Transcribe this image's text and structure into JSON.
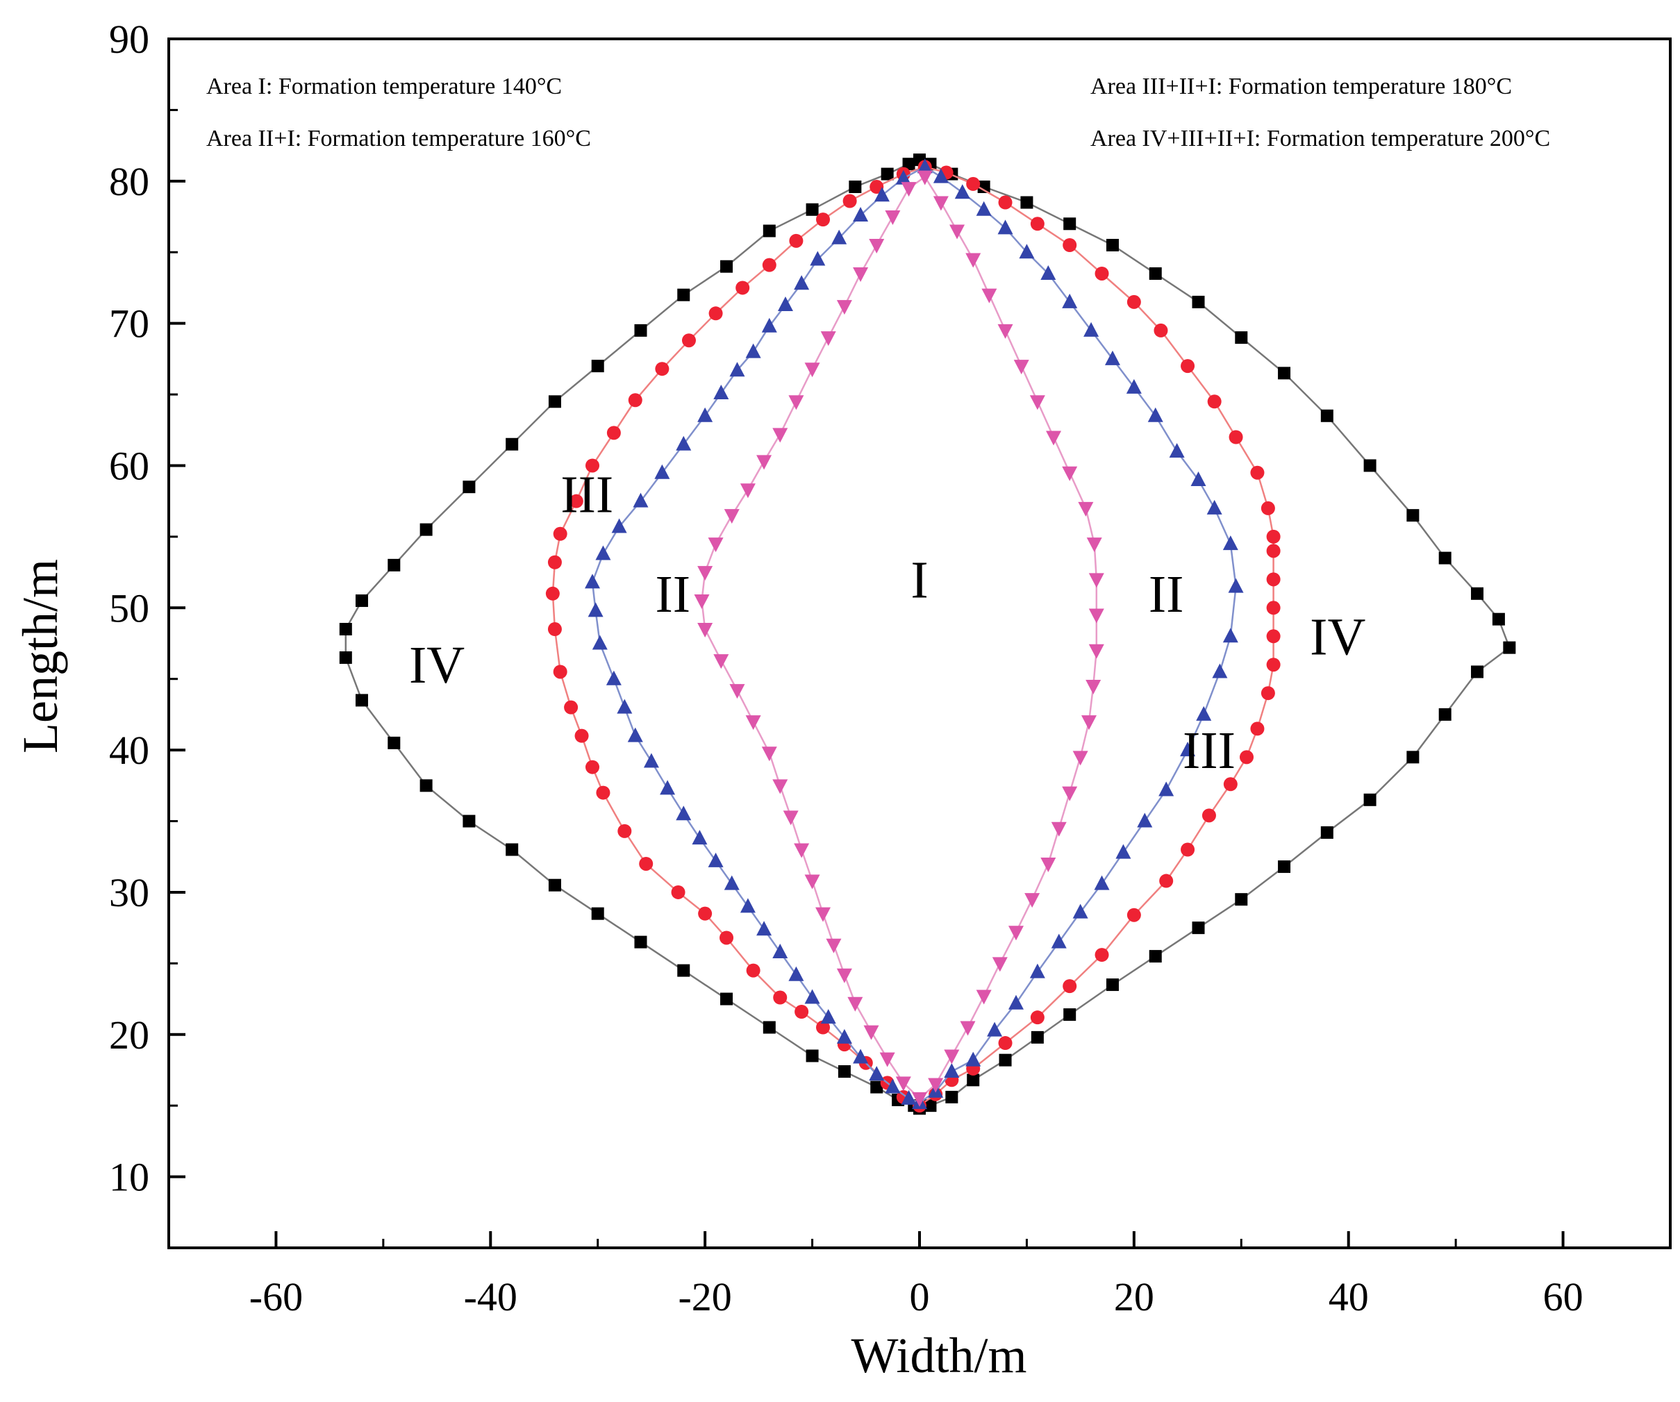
{
  "chart_data": {
    "type": "scatter",
    "title": "",
    "xlabel": "Width/m",
    "ylabel": "Length/m",
    "xlim": [
      -70,
      70
    ],
    "ylim": [
      5,
      90
    ],
    "xticks": [
      -60,
      -40,
      -20,
      0,
      20,
      40,
      60
    ],
    "yticks": [
      10,
      20,
      30,
      40,
      50,
      60,
      70,
      80,
      90
    ],
    "xtick_labels": [
      "-60",
      "-40",
      "-20",
      "0",
      "20",
      "40",
      "60"
    ],
    "ytick_labels": [
      "10",
      "20",
      "30",
      "40",
      "50",
      "60",
      "70",
      "80",
      "90"
    ],
    "legend_notes": [
      "Area I: Formation temperature 140°C",
      "Area II+I: Formation temperature 160°C",
      "Area III+II+I: Formation temperature 180°C",
      "Area IV+III+II+I: Formation temperature 200°C"
    ],
    "region_labels": [
      {
        "text": "I",
        "x": 0,
        "y": 52
      },
      {
        "text": "II",
        "x": -23,
        "y": 51
      },
      {
        "text": "II",
        "x": 23,
        "y": 51
      },
      {
        "text": "III",
        "x": -31,
        "y": 58
      },
      {
        "text": "III",
        "x": 27,
        "y": 40
      },
      {
        "text": "IV",
        "x": -45,
        "y": 46
      },
      {
        "text": "IV",
        "x": 39,
        "y": 48
      }
    ],
    "series": [
      {
        "name": "200°C",
        "marker": "square",
        "color": "#000000",
        "line_color": "#777777",
        "points": [
          [
            0,
            14.8
          ],
          [
            1,
            15
          ],
          [
            3,
            15.6
          ],
          [
            5,
            16.8
          ],
          [
            8,
            18.2
          ],
          [
            11,
            19.8
          ],
          [
            14,
            21.4
          ],
          [
            18,
            23.5
          ],
          [
            22,
            25.5
          ],
          [
            26,
            27.5
          ],
          [
            30,
            29.5
          ],
          [
            34,
            31.8
          ],
          [
            38,
            34.2
          ],
          [
            42,
            36.5
          ],
          [
            46,
            39.5
          ],
          [
            49,
            42.5
          ],
          [
            52,
            45.5
          ],
          [
            55,
            47.2
          ],
          [
            54,
            49.2
          ],
          [
            52,
            51
          ],
          [
            49,
            53.5
          ],
          [
            46,
            56.5
          ],
          [
            42,
            60
          ],
          [
            38,
            63.5
          ],
          [
            34,
            66.5
          ],
          [
            30,
            69
          ],
          [
            26,
            71.5
          ],
          [
            22,
            73.5
          ],
          [
            18,
            75.5
          ],
          [
            14,
            77
          ],
          [
            10,
            78.5
          ],
          [
            6,
            79.6
          ],
          [
            3,
            80.5
          ],
          [
            1,
            81.2
          ],
          [
            0,
            81.5
          ],
          [
            -1,
            81.2
          ],
          [
            -3,
            80.5
          ],
          [
            -6,
            79.6
          ],
          [
            -10,
            78
          ],
          [
            -14,
            76.5
          ],
          [
            -18,
            74
          ],
          [
            -22,
            72
          ],
          [
            -26,
            69.5
          ],
          [
            -30,
            67
          ],
          [
            -34,
            64.5
          ],
          [
            -38,
            61.5
          ],
          [
            -42,
            58.5
          ],
          [
            -46,
            55.5
          ],
          [
            -49,
            53
          ],
          [
            -52,
            50.5
          ],
          [
            -53.5,
            48.5
          ],
          [
            -53.5,
            46.5
          ],
          [
            -52,
            43.5
          ],
          [
            -49,
            40.5
          ],
          [
            -46,
            37.5
          ],
          [
            -42,
            35
          ],
          [
            -38,
            33
          ],
          [
            -34,
            30.5
          ],
          [
            -30,
            28.5
          ],
          [
            -26,
            26.5
          ],
          [
            -22,
            24.5
          ],
          [
            -18,
            22.5
          ],
          [
            -14,
            20.5
          ],
          [
            -10,
            18.5
          ],
          [
            -7,
            17.4
          ],
          [
            -4,
            16.3
          ],
          [
            -2,
            15.4
          ],
          [
            -0.5,
            15
          ]
        ]
      },
      {
        "name": "180°C",
        "marker": "circle",
        "color": "#ee2233",
        "line_color": "#f08080",
        "points": [
          [
            0,
            15
          ],
          [
            1.5,
            15.8
          ],
          [
            3,
            16.8
          ],
          [
            5,
            17.6
          ],
          [
            8,
            19.4
          ],
          [
            11,
            21.2
          ],
          [
            14,
            23.4
          ],
          [
            17,
            25.6
          ],
          [
            20,
            28.4
          ],
          [
            23,
            30.8
          ],
          [
            25,
            33
          ],
          [
            27,
            35.4
          ],
          [
            29,
            37.6
          ],
          [
            30.5,
            39.5
          ],
          [
            31.5,
            41.5
          ],
          [
            32.5,
            44
          ],
          [
            33,
            46
          ],
          [
            33,
            48
          ],
          [
            33,
            50
          ],
          [
            33,
            52
          ],
          [
            33,
            54
          ],
          [
            33,
            55
          ],
          [
            32.5,
            57
          ],
          [
            31.5,
            59.5
          ],
          [
            29.5,
            62
          ],
          [
            27.5,
            64.5
          ],
          [
            25,
            67
          ],
          [
            22.5,
            69.5
          ],
          [
            20,
            71.5
          ],
          [
            17,
            73.5
          ],
          [
            14,
            75.5
          ],
          [
            11,
            77
          ],
          [
            8,
            78.5
          ],
          [
            5,
            79.8
          ],
          [
            2.5,
            80.6
          ],
          [
            0.5,
            81
          ],
          [
            -1.5,
            80.5
          ],
          [
            -4,
            79.6
          ],
          [
            -6.5,
            78.6
          ],
          [
            -9,
            77.3
          ],
          [
            -11.5,
            75.8
          ],
          [
            -14,
            74.1
          ],
          [
            -16.5,
            72.5
          ],
          [
            -19,
            70.7
          ],
          [
            -21.5,
            68.8
          ],
          [
            -24,
            66.8
          ],
          [
            -26.5,
            64.6
          ],
          [
            -28.5,
            62.3
          ],
          [
            -30.5,
            60
          ],
          [
            -32,
            57.5
          ],
          [
            -33.5,
            55.2
          ],
          [
            -34,
            53.2
          ],
          [
            -34.2,
            51
          ],
          [
            -34,
            48.5
          ],
          [
            -33.5,
            45.5
          ],
          [
            -32.5,
            43
          ],
          [
            -31.5,
            41
          ],
          [
            -30.5,
            38.8
          ],
          [
            -29.5,
            37
          ],
          [
            -27.5,
            34.3
          ],
          [
            -25.5,
            32
          ],
          [
            -22.5,
            30
          ],
          [
            -20,
            28.5
          ],
          [
            -18,
            26.8
          ],
          [
            -15.5,
            24.5
          ],
          [
            -13,
            22.6
          ],
          [
            -11,
            21.6
          ],
          [
            -9,
            20.5
          ],
          [
            -7,
            19.3
          ],
          [
            -5,
            18
          ],
          [
            -3,
            16.6
          ],
          [
            -1.5,
            15.6
          ]
        ]
      },
      {
        "name": "160°C",
        "marker": "triangle-up",
        "color": "#3344aa",
        "line_color": "#8090cc",
        "points": [
          [
            0,
            15.2
          ],
          [
            1.5,
            16
          ],
          [
            3,
            17.4
          ],
          [
            5,
            18.2
          ],
          [
            7,
            20.3
          ],
          [
            9,
            22.2
          ],
          [
            11,
            24.4
          ],
          [
            13,
            26.5
          ],
          [
            15,
            28.6
          ],
          [
            17,
            30.6
          ],
          [
            19,
            32.8
          ],
          [
            21,
            35
          ],
          [
            23,
            37.2
          ],
          [
            25,
            40
          ],
          [
            26.5,
            42.5
          ],
          [
            28,
            45.5
          ],
          [
            29,
            48
          ],
          [
            29.5,
            51.5
          ],
          [
            29,
            54.5
          ],
          [
            27.5,
            57
          ],
          [
            26,
            59
          ],
          [
            24,
            61
          ],
          [
            22,
            63.5
          ],
          [
            20,
            65.5
          ],
          [
            18,
            67.5
          ],
          [
            16,
            69.5
          ],
          [
            14,
            71.5
          ],
          [
            12,
            73.5
          ],
          [
            10,
            75
          ],
          [
            8,
            76.7
          ],
          [
            6,
            78
          ],
          [
            4,
            79.2
          ],
          [
            2,
            80.3
          ],
          [
            0.5,
            81
          ],
          [
            -1.5,
            80.2
          ],
          [
            -3.5,
            79
          ],
          [
            -5.5,
            77.6
          ],
          [
            -7.5,
            76
          ],
          [
            -9.5,
            74.5
          ],
          [
            -11,
            72.8
          ],
          [
            -12.5,
            71.3
          ],
          [
            -14,
            69.8
          ],
          [
            -15.5,
            68
          ],
          [
            -17,
            66.7
          ],
          [
            -18.5,
            65.1
          ],
          [
            -20,
            63.5
          ],
          [
            -22,
            61.5
          ],
          [
            -24,
            59.5
          ],
          [
            -26,
            57.5
          ],
          [
            -28,
            55.7
          ],
          [
            -29.5,
            53.8
          ],
          [
            -30.5,
            51.8
          ],
          [
            -30.2,
            49.8
          ],
          [
            -29.8,
            47.5
          ],
          [
            -28.5,
            45
          ],
          [
            -27.5,
            43
          ],
          [
            -26.5,
            41
          ],
          [
            -25,
            39.2
          ],
          [
            -23.5,
            37.3
          ],
          [
            -22,
            35.5
          ],
          [
            -20.5,
            33.8
          ],
          [
            -19,
            32.2
          ],
          [
            -17.5,
            30.6
          ],
          [
            -16,
            29
          ],
          [
            -14.5,
            27.4
          ],
          [
            -13,
            25.8
          ],
          [
            -11.5,
            24.2
          ],
          [
            -10,
            22.6
          ],
          [
            -8.5,
            21.2
          ],
          [
            -7,
            19.8
          ],
          [
            -5.5,
            18.4
          ],
          [
            -4,
            17.2
          ],
          [
            -2.5,
            16.3
          ],
          [
            -1,
            15.5
          ]
        ]
      },
      {
        "name": "140°C",
        "marker": "triangle-down",
        "color": "#dd55aa",
        "line_color": "#e89cc8",
        "points": [
          [
            0,
            15.5
          ],
          [
            1.5,
            16.5
          ],
          [
            3,
            18.5
          ],
          [
            4.5,
            20.5
          ],
          [
            6,
            22.7
          ],
          [
            7.5,
            25
          ],
          [
            9,
            27.2
          ],
          [
            10.5,
            29.5
          ],
          [
            12,
            32
          ],
          [
            13,
            34.5
          ],
          [
            14,
            37
          ],
          [
            15,
            39.5
          ],
          [
            15.8,
            42
          ],
          [
            16.2,
            44.5
          ],
          [
            16.5,
            47
          ],
          [
            16.5,
            49.5
          ],
          [
            16.5,
            52
          ],
          [
            16.3,
            54.5
          ],
          [
            15.5,
            57
          ],
          [
            14,
            59.5
          ],
          [
            12.5,
            62
          ],
          [
            11,
            64.5
          ],
          [
            9.5,
            67
          ],
          [
            8,
            69.5
          ],
          [
            6.5,
            72
          ],
          [
            5,
            74.5
          ],
          [
            3.5,
            76.5
          ],
          [
            2,
            78.5
          ],
          [
            0.5,
            80.3
          ],
          [
            -1,
            79.5
          ],
          [
            -2.5,
            77.5
          ],
          [
            -4,
            75.5
          ],
          [
            -5.5,
            73.5
          ],
          [
            -7,
            71.2
          ],
          [
            -8.5,
            69
          ],
          [
            -10,
            66.8
          ],
          [
            -11.5,
            64.5
          ],
          [
            -13,
            62.2
          ],
          [
            -14.5,
            60.3
          ],
          [
            -16,
            58.3
          ],
          [
            -17.5,
            56.5
          ],
          [
            -19,
            54.5
          ],
          [
            -20,
            52.5
          ],
          [
            -20.3,
            50.5
          ],
          [
            -20,
            48.5
          ],
          [
            -18.5,
            46.3
          ],
          [
            -17,
            44.2
          ],
          [
            -15.5,
            42
          ],
          [
            -14,
            39.8
          ],
          [
            -13,
            37.5
          ],
          [
            -12,
            35.3
          ],
          [
            -11,
            33
          ],
          [
            -10,
            30.8
          ],
          [
            -9,
            28.5
          ],
          [
            -8,
            26.3
          ],
          [
            -7,
            24.2
          ],
          [
            -6,
            22.2
          ],
          [
            -4.5,
            20.2
          ],
          [
            -3,
            18.3
          ],
          [
            -1.5,
            16.6
          ]
        ]
      }
    ]
  }
}
